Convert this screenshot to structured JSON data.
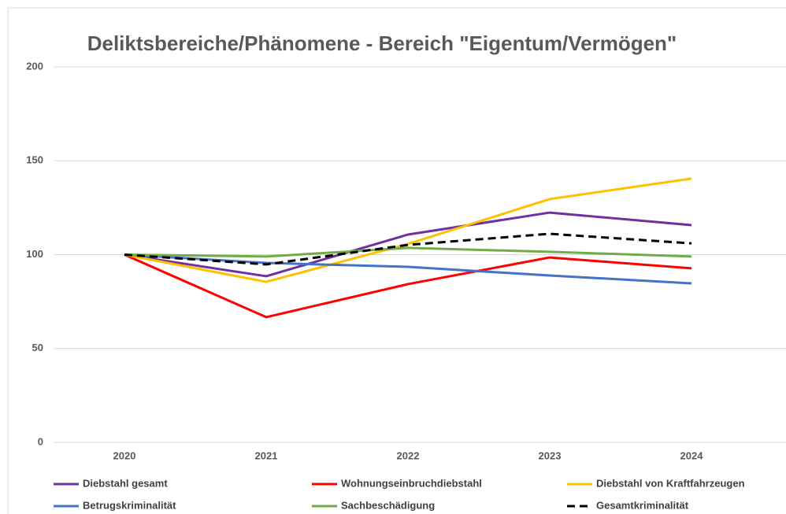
{
  "chart_data": {
    "type": "line",
    "title": "Deliktsbereiche/Phänomene - Bereich \"Eigentum/Vermögen\"",
    "categories": [
      "2020",
      "2021",
      "2022",
      "2023",
      "2024"
    ],
    "series": [
      {
        "name": "Diebstahl gesamt",
        "color": "#7030a0",
        "values": [
          100,
          88.5,
          110.7,
          122.4,
          115.7
        ]
      },
      {
        "name": "Wohnungseinbruchdiebstahl",
        "color": "#ff0000",
        "values": [
          100,
          66.7,
          84.3,
          98.5,
          92.7
        ]
      },
      {
        "name": "Diebstahl von Kraftfahrzeugen",
        "color": "#ffc000",
        "values": [
          100,
          85.5,
          105.7,
          129.6,
          140.5
        ]
      },
      {
        "name": "Betrugskriminalität",
        "color": "#4472c4",
        "values": [
          100,
          95.6,
          93.5,
          88.9,
          84.7
        ]
      },
      {
        "name": "Sachbeschädigung",
        "color": "#70ad47",
        "values": [
          100,
          99,
          103.6,
          101.5,
          99
        ]
      },
      {
        "name": "Gesamtkriminalität",
        "color": "#000000",
        "dashed": true,
        "values": [
          100,
          94.8,
          105.2,
          111.1,
          106
        ]
      }
    ],
    "ylim": [
      0,
      200
    ],
    "yticks": [
      0,
      50,
      100,
      150,
      200
    ],
    "grid": true,
    "legend": "bottom"
  }
}
